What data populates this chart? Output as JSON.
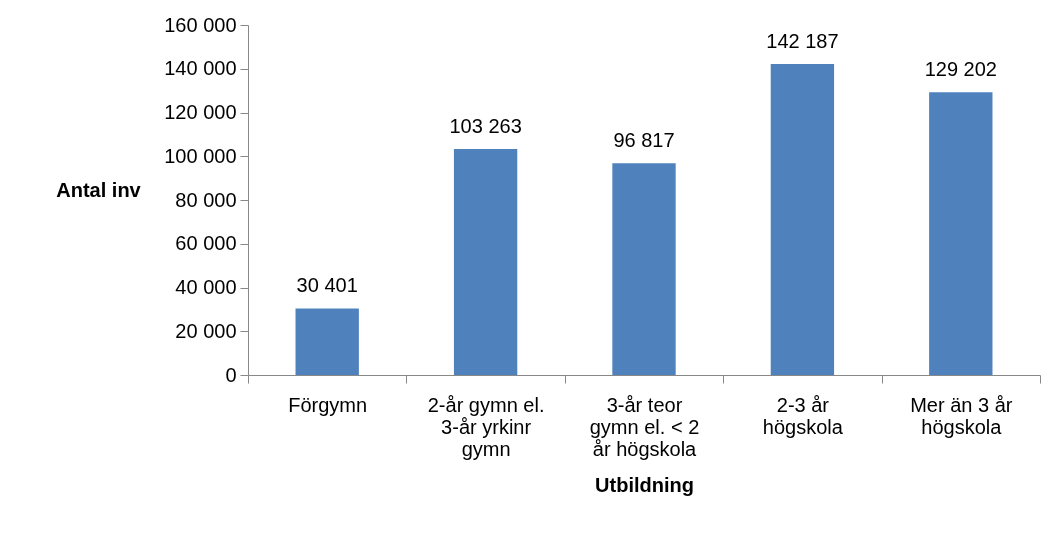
{
  "chart_data": {
    "type": "bar",
    "xlabel": "Utbildning",
    "ylabel": "Antal inv",
    "categories": [
      "Förgymn",
      "2-år gymn el. 3-år yrkinr gymn",
      "3-år teor gymn el. < 2 år högskola",
      "2-3 år högskola",
      "Mer än 3 år högskola"
    ],
    "values": [
      30401,
      103263,
      96817,
      142187,
      129202
    ],
    "value_labels": [
      "30 401",
      "103 263",
      "96 817",
      "142 187",
      "129 202"
    ],
    "color": "#4f81bd",
    "ylim": [
      0,
      160000
    ],
    "yticks": [
      {
        "value": 0,
        "label": "0"
      },
      {
        "value": 20000,
        "label": "20 000"
      },
      {
        "value": 40000,
        "label": "40 000"
      },
      {
        "value": 60000,
        "label": "60 000"
      },
      {
        "value": 80000,
        "label": "80 000"
      },
      {
        "value": 100000,
        "label": "100 000"
      },
      {
        "value": 120000,
        "label": "120 000"
      },
      {
        "value": 140000,
        "label": "140 000"
      },
      {
        "value": 160000,
        "label": "160 000"
      }
    ],
    "grid": false
  }
}
